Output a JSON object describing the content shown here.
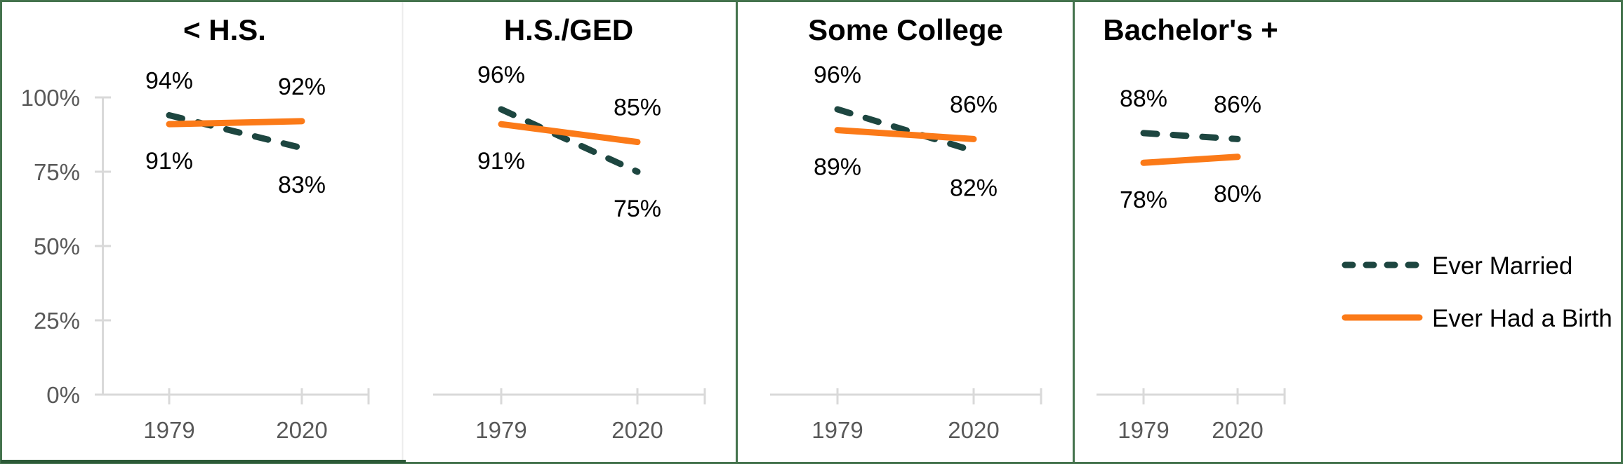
{
  "figure": {
    "background": "#ffffff",
    "border_color": "#44734d",
    "panel1_bottom_border_color": "#2d5a38",
    "axis_color": "#d9d9d9",
    "axis_label_color": "#595959",
    "data_label_color": "#000000",
    "y_axis": {
      "tick_labels": [
        "0%",
        "25%",
        "50%",
        "75%",
        "100%"
      ],
      "tick_values": [
        0,
        25,
        50,
        75,
        100
      ],
      "range": [
        0,
        100
      ],
      "grid": "off",
      "shown_on": "first panel only"
    },
    "x_tick_labels": [
      "1979",
      "2020"
    ],
    "legend": [
      {
        "label": "Ever Married",
        "style": "dashed",
        "color": "#1d4640"
      },
      {
        "label": "Ever Had a Birth",
        "style": "solid",
        "color": "#fb7a18"
      }
    ],
    "legend_position": "right of last panel, middle"
  },
  "chart_data": [
    {
      "type": "line",
      "title": "< H.S.",
      "x": [
        "1979",
        "2020"
      ],
      "ylim": [
        0,
        100
      ],
      "series": [
        {
          "name": "Ever Married",
          "values": [
            94,
            83
          ],
          "labels": [
            "94%",
            "83%"
          ]
        },
        {
          "name": "Ever Had a Birth",
          "values": [
            91,
            92
          ],
          "labels": [
            "91%",
            "92%"
          ]
        }
      ]
    },
    {
      "type": "line",
      "title": "H.S./GED",
      "x": [
        "1979",
        "2020"
      ],
      "ylim": [
        0,
        100
      ],
      "series": [
        {
          "name": "Ever Married",
          "values": [
            96,
            75
          ],
          "labels": [
            "96%",
            "75%"
          ]
        },
        {
          "name": "Ever Had a Birth",
          "values": [
            91,
            85
          ],
          "labels": [
            "91%",
            "85%"
          ]
        }
      ]
    },
    {
      "type": "line",
      "title": "Some College",
      "x": [
        "1979",
        "2020"
      ],
      "ylim": [
        0,
        100
      ],
      "series": [
        {
          "name": "Ever Married",
          "values": [
            96,
            82
          ],
          "labels": [
            "96%",
            "82%"
          ]
        },
        {
          "name": "Ever Had a Birth",
          "values": [
            89,
            86
          ],
          "labels": [
            "89%",
            "86%"
          ]
        }
      ]
    },
    {
      "type": "line",
      "title": "Bachelor's +",
      "x": [
        "1979",
        "2020"
      ],
      "ylim": [
        0,
        100
      ],
      "series": [
        {
          "name": "Ever Married",
          "values": [
            88,
            86
          ],
          "labels": [
            "88%",
            "86%"
          ]
        },
        {
          "name": "Ever Had a Birth",
          "values": [
            78,
            80
          ],
          "labels": [
            "78%",
            "80%"
          ]
        }
      ]
    }
  ]
}
